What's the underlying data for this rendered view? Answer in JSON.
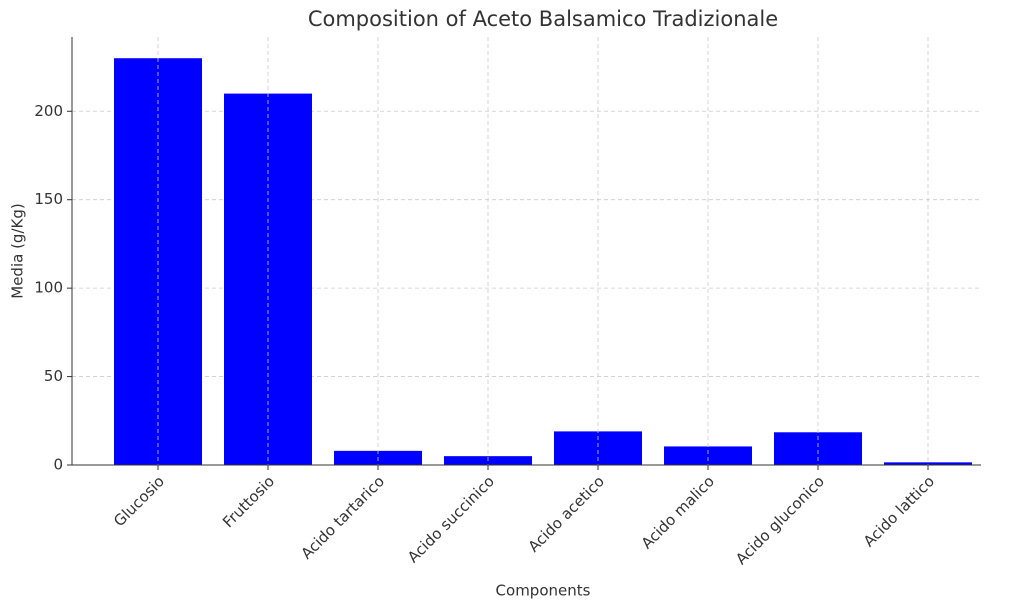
{
  "chart_data": {
    "type": "bar",
    "title": "Composition of Aceto Balsamico Tradizionale",
    "x_label": "Components",
    "y_label": "Media (g/Kg)",
    "categories": [
      "Glucosio",
      "Fruttosio",
      "Acido tartarico",
      "Acido succinico",
      "Acido acetico",
      "Acido malico",
      "Acido gluconico",
      "Acido lattico"
    ],
    "values": [
      230,
      210,
      8,
      5,
      19,
      10.5,
      18.5,
      1.5
    ],
    "color": "#0000ff",
    "ylim": [
      0,
      242
    ],
    "yticks": [
      0,
      50,
      100,
      150,
      200
    ],
    "grid": true
  }
}
